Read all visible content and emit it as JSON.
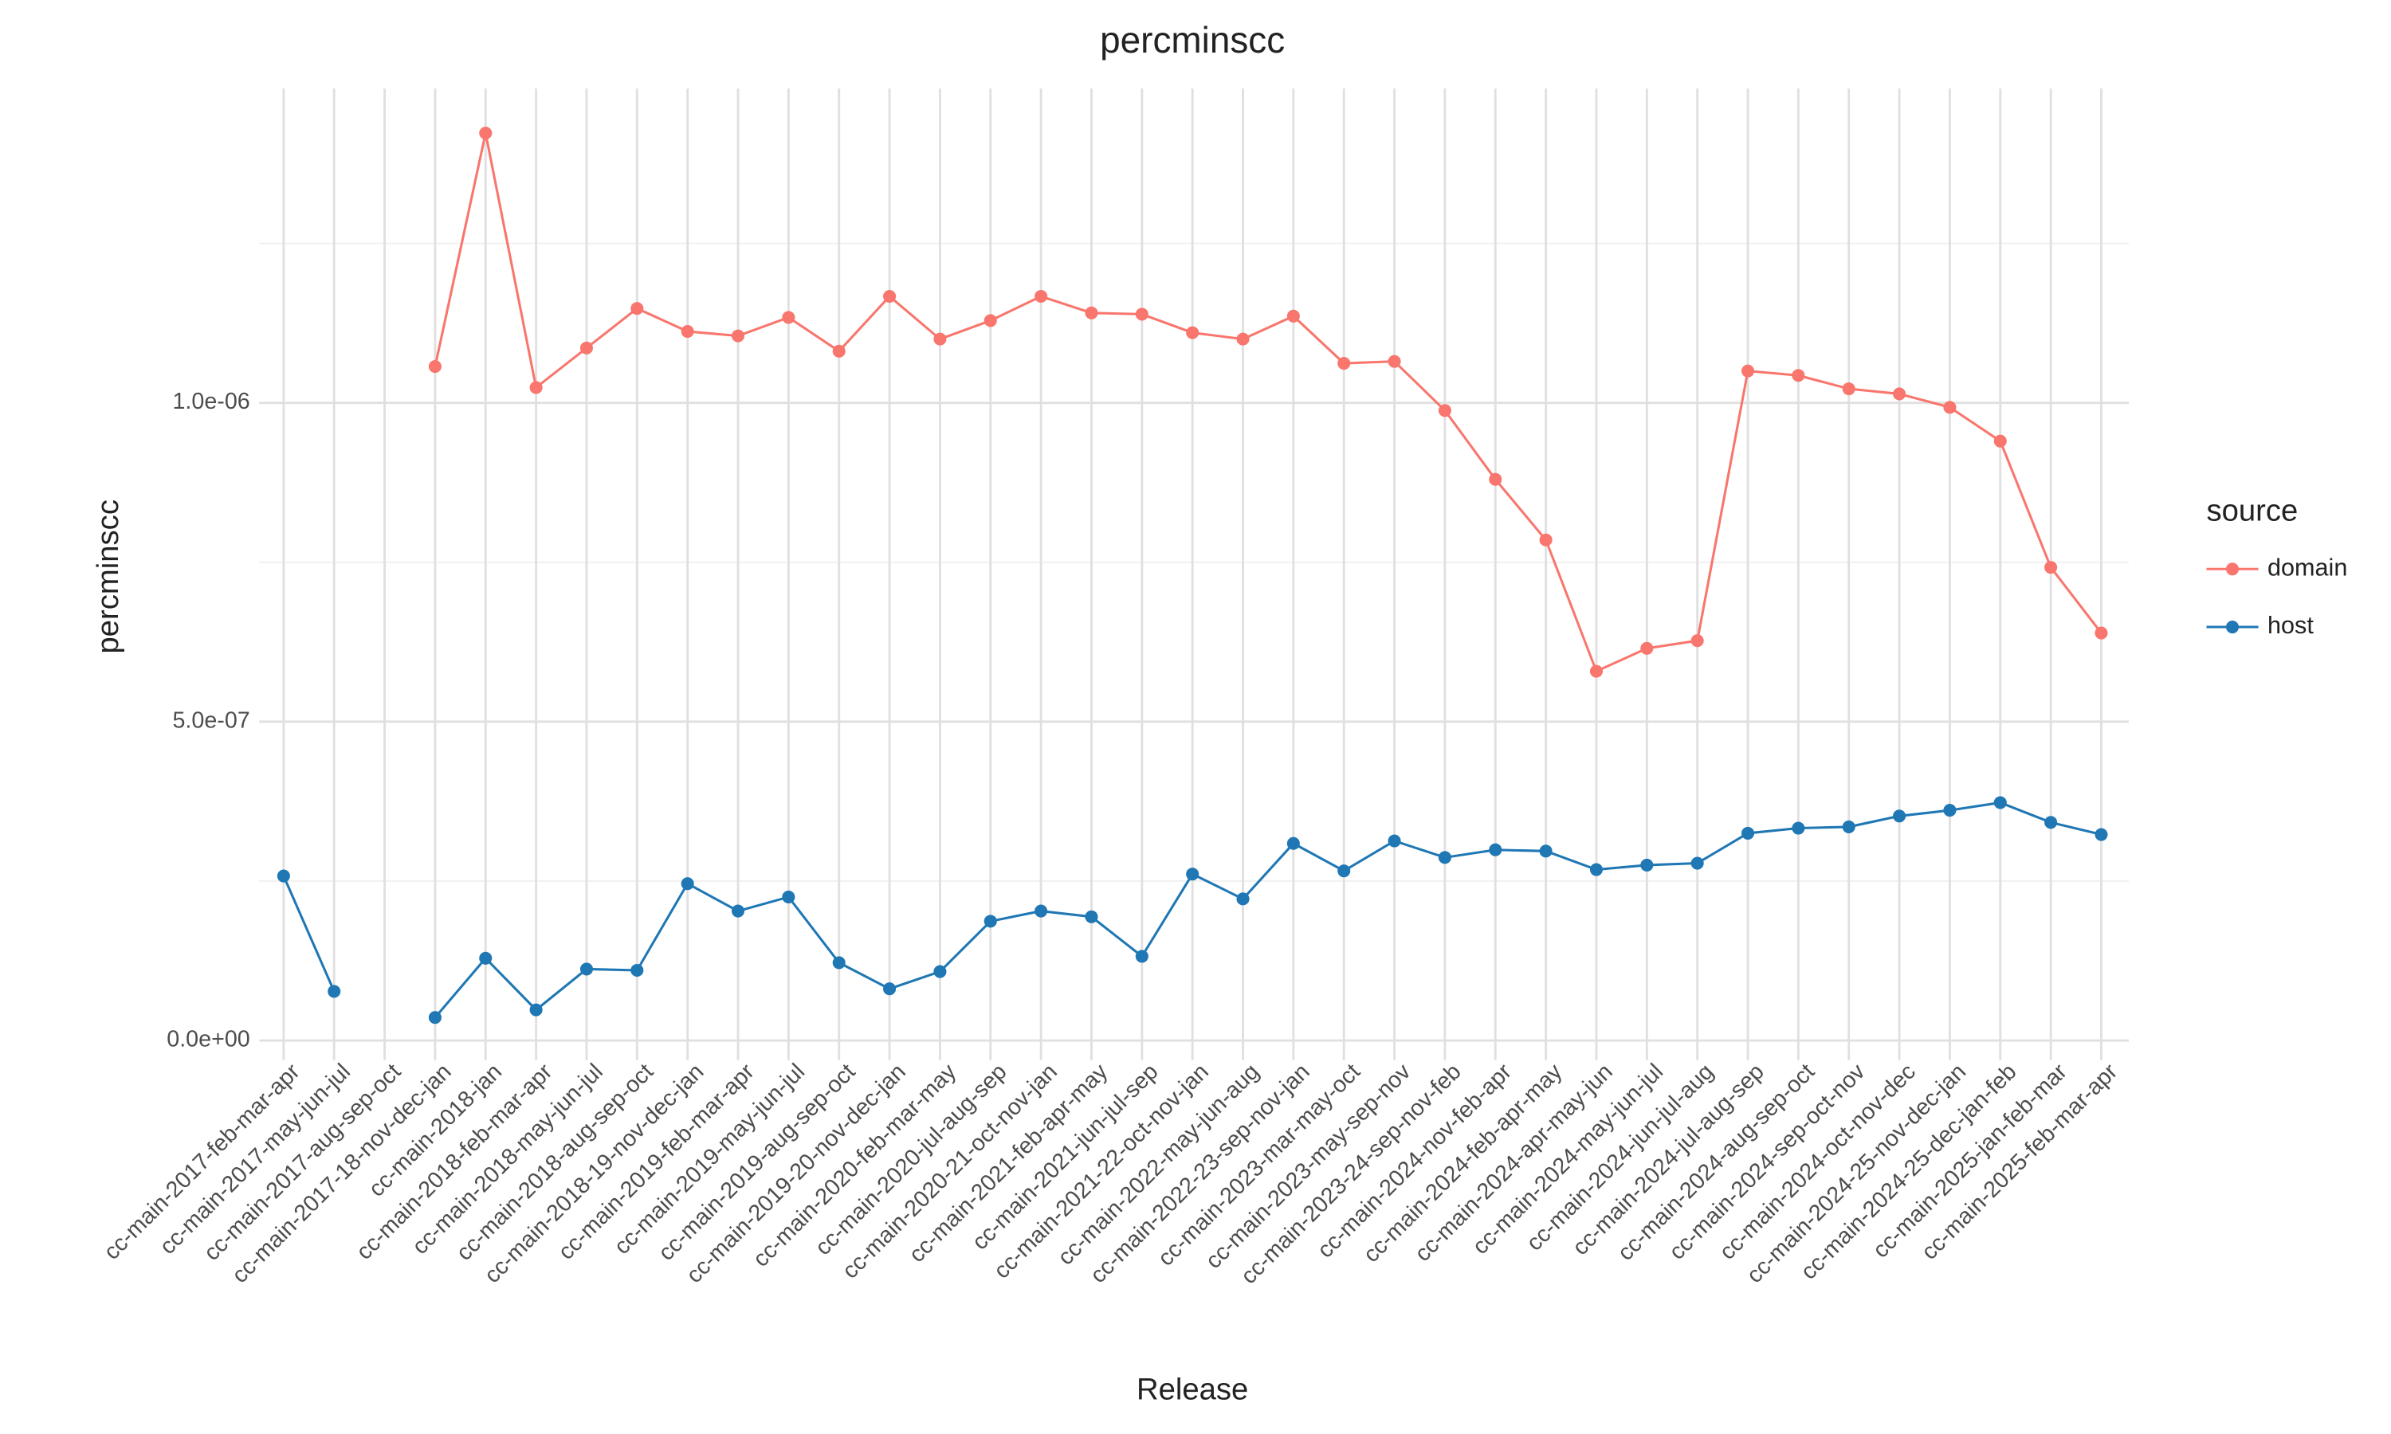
{
  "chart_data": {
    "type": "line",
    "title": "percminscc",
    "x_label": "Release",
    "y_label": "percminscc",
    "legend_title": "source",
    "legend_position": "right",
    "grid": true,
    "categories": [
      "cc-main-2017-feb-mar-apr",
      "cc-main-2017-may-jun-jul",
      "cc-main-2017-aug-sep-oct",
      "cc-main-2017-18-nov-dec-jan",
      "cc-main-2018-jan",
      "cc-main-2018-feb-mar-apr",
      "cc-main-2018-may-jun-jul",
      "cc-main-2018-aug-sep-oct",
      "cc-main-2018-19-nov-dec-jan",
      "cc-main-2019-feb-mar-apr",
      "cc-main-2019-may-jun-jul",
      "cc-main-2019-aug-sep-oct",
      "cc-main-2019-20-nov-dec-jan",
      "cc-main-2020-feb-mar-may",
      "cc-main-2020-jul-aug-sep",
      "cc-main-2020-21-oct-nov-jan",
      "cc-main-2021-feb-apr-may",
      "cc-main-2021-jun-jul-sep",
      "cc-main-2021-22-oct-nov-jan",
      "cc-main-2022-may-jun-aug",
      "cc-main-2022-23-sep-nov-jan",
      "cc-main-2023-mar-may-oct",
      "cc-main-2023-may-sep-nov",
      "cc-main-2023-24-sep-nov-feb",
      "cc-main-2024-nov-feb-apr",
      "cc-main-2024-feb-apr-may",
      "cc-main-2024-apr-may-jun",
      "cc-main-2024-may-jun-jul",
      "cc-main-2024-jun-jul-aug",
      "cc-main-2024-jul-aug-sep",
      "cc-main-2024-aug-sep-oct",
      "cc-main-2024-sep-oct-nov",
      "cc-main-2024-oct-nov-dec",
      "cc-main-2024-25-nov-dec-jan",
      "cc-main-2024-25-dec-jan-feb",
      "cc-main-2025-jan-feb-mar",
      "cc-main-2025-feb-mar-apr"
    ],
    "series": [
      {
        "name": "domain",
        "color": "#f8766d",
        "values": [
          null,
          null,
          null,
          1.057e-06,
          1.423e-06,
          1.024e-06,
          1.086e-06,
          1.148e-06,
          1.112e-06,
          1.105e-06,
          1.134e-06,
          1.081e-06,
          1.167e-06,
          1.1e-06,
          1.129e-06,
          1.167e-06,
          1.141e-06,
          1.139e-06,
          1.11e-06,
          1.1e-06,
          1.136e-06,
          1.062e-06,
          1.065e-06,
          9.88e-07,
          8.8e-07,
          7.85e-07,
          5.79e-07,
          6.15e-07,
          6.27e-07,
          1.05e-06,
          1.043e-06,
          1.022e-06,
          1.014e-06,
          9.93e-07,
          9.4e-07,
          7.42e-07,
          6.39e-07
        ]
      },
      {
        "name": "host",
        "color": "#1f77b4",
        "values": [
          2.58e-07,
          7.7e-08,
          null,
          3.6e-08,
          1.29e-07,
          4.8e-08,
          1.12e-07,
          1.1e-07,
          2.46e-07,
          2.03e-07,
          2.25e-07,
          1.22e-07,
          8.1e-08,
          1.08e-07,
          1.87e-07,
          2.03e-07,
          1.94e-07,
          1.32e-07,
          2.61e-07,
          2.22e-07,
          3.09e-07,
          2.66e-07,
          3.13e-07,
          2.87e-07,
          2.99e-07,
          2.97e-07,
          2.68e-07,
          2.75e-07,
          2.78e-07,
          3.25e-07,
          3.33e-07,
          3.35e-07,
          3.52e-07,
          3.61e-07,
          3.73e-07,
          3.42e-07,
          3.23e-07
        ]
      }
    ],
    "ylim": [
      -3.1e-08,
      1.493e-06
    ],
    "yticks": [
      {
        "value": 0,
        "label": "0.0e+00"
      },
      {
        "value": 5e-07,
        "label": "5.0e-07"
      },
      {
        "value": 1e-06,
        "label": "1.0e-06"
      }
    ],
    "minor_yticks": [
      2.5e-07,
      7.5e-07,
      1.25e-06
    ]
  }
}
